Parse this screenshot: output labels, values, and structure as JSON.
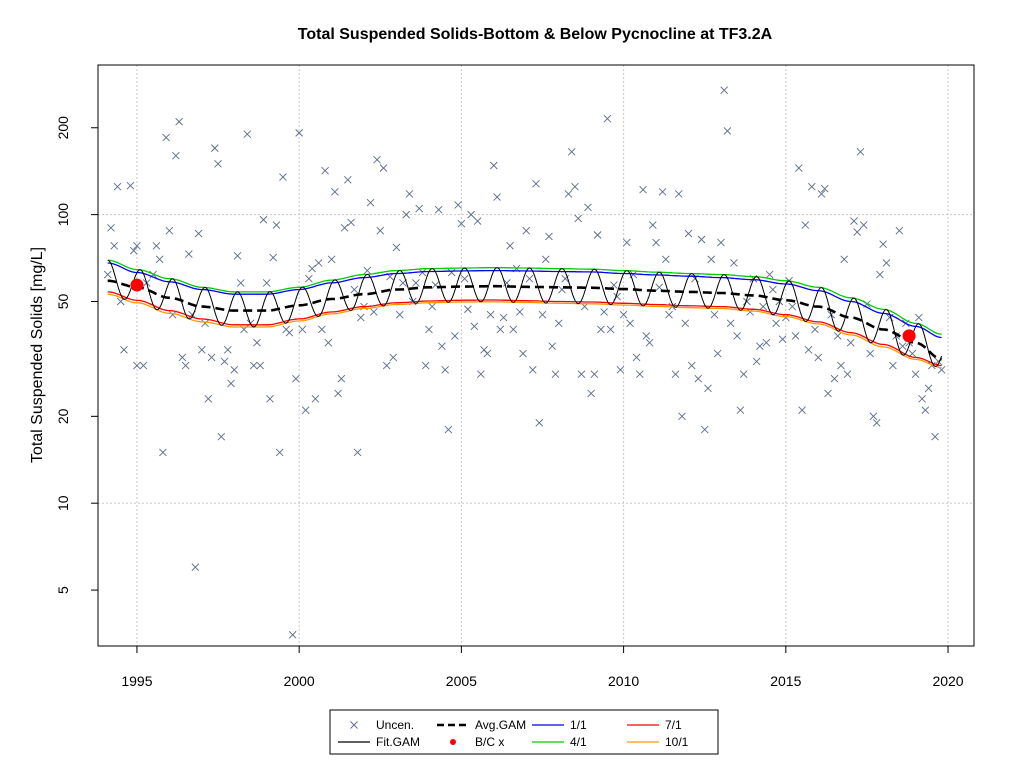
{
  "chart_data": {
    "type": "scatter",
    "title": "Total Suspended Solids-Bottom & Below Pycnocline at TF3.2A",
    "xlabel": "",
    "ylabel": "Total Suspended Solids [mg/L]",
    "xlim": [
      1993.8,
      2020.8
    ],
    "ylim": [
      3.2,
      330
    ],
    "yscale": "log",
    "grid": true,
    "xticks": [
      1995,
      2000,
      2005,
      2010,
      2015,
      2020
    ],
    "yticks": [
      5,
      10,
      20,
      50,
      100,
      200
    ],
    "legend_position": "bottom-center",
    "legend": [
      {
        "label": "Uncen.",
        "kind": "x-marker",
        "color": "#5a6a8a"
      },
      {
        "label": "Fit.GAM",
        "kind": "line",
        "color": "#000000"
      },
      {
        "label": "Avg.GAM",
        "kind": "dashed-line",
        "color": "#000000"
      },
      {
        "label": "B/C x",
        "kind": "dot",
        "color": "#ff0000"
      },
      {
        "label": "1/1",
        "kind": "line",
        "color": "#0000ff"
      },
      {
        "label": "4/1",
        "kind": "line",
        "color": "#00cc00"
      },
      {
        "label": "7/1",
        "kind": "line",
        "color": "#ff0000"
      },
      {
        "label": "10/1",
        "kind": "line",
        "color": "#ff9900"
      }
    ],
    "curve_knots": {
      "x": [
        1994.1,
        1995,
        1996,
        1997,
        1998,
        1999,
        2000,
        2001,
        2002,
        2003,
        2004,
        2005,
        2006,
        2007,
        2008,
        2009,
        2010,
        2011,
        2012,
        2013,
        2014,
        2015,
        2016,
        2017,
        2018,
        2019,
        2019.8
      ],
      "avg_gam": [
        59,
        56,
        51.5,
        48,
        46.5,
        46.5,
        48.5,
        51,
        53,
        55,
        56,
        56.3,
        56.5,
        56.2,
        56,
        55.8,
        55.2,
        54.5,
        54,
        53.5,
        52.5,
        50.5,
        48,
        44,
        40,
        36,
        31.5
      ],
      "gam_1_1": [
        68,
        63,
        58.5,
        55,
        53,
        53,
        55,
        58,
        60.5,
        62.5,
        63.5,
        63.8,
        64,
        63.8,
        63.5,
        63.3,
        62.5,
        61.8,
        61.2,
        60.5,
        59.5,
        57.5,
        54.5,
        50,
        45.5,
        41,
        37.5
      ],
      "gam_4_1": [
        69.5,
        64.5,
        60,
        56,
        54,
        54,
        56,
        59.3,
        62,
        64,
        65,
        65.3,
        65.5,
        65.3,
        65,
        64.7,
        64,
        63.2,
        62.5,
        62,
        61,
        59,
        56,
        51.5,
        47,
        42,
        38.5
      ],
      "gam_7_1": [
        54,
        50.5,
        46.5,
        43.5,
        41.5,
        41.5,
        43.5,
        46,
        48,
        49.5,
        50.2,
        50.5,
        50.6,
        50.3,
        50,
        49.8,
        49.3,
        48.8,
        48.3,
        48,
        47,
        45,
        42.5,
        39,
        35.5,
        32,
        30
      ],
      "gam_7_1_orange": [
        53,
        49.5,
        45.5,
        42.5,
        40.8,
        40.8,
        42.8,
        45.3,
        47.3,
        48.8,
        49.5,
        49.8,
        49.9,
        49.6,
        49.3,
        49.1,
        48.6,
        48.1,
        47.6,
        47.3,
        46.3,
        44.3,
        41.8,
        38.3,
        34.8,
        31.5,
        29.5
      ]
    },
    "bc_points": [
      {
        "x": 1995.0,
        "y": 57
      },
      {
        "x": 2018.8,
        "y": 38
      }
    ],
    "uncensored": [
      [
        1994.1,
        62
      ],
      [
        1994.2,
        90
      ],
      [
        1994.3,
        78
      ],
      [
        1994.4,
        125
      ],
      [
        1994.5,
        50
      ],
      [
        1994.6,
        34
      ],
      [
        1994.8,
        126
      ],
      [
        1994.9,
        75
      ],
      [
        1995.0,
        30
      ],
      [
        1995.0,
        78
      ],
      [
        1995.2,
        30
      ],
      [
        1995.3,
        58
      ],
      [
        1995.5,
        62
      ],
      [
        1995.6,
        78
      ],
      [
        1995.7,
        70
      ],
      [
        1995.8,
        15
      ],
      [
        1995.9,
        185
      ],
      [
        1996.0,
        88
      ],
      [
        1996.1,
        45
      ],
      [
        1996.2,
        160
      ],
      [
        1996.3,
        210
      ],
      [
        1996.4,
        32
      ],
      [
        1996.5,
        30
      ],
      [
        1996.6,
        73
      ],
      [
        1996.7,
        45
      ],
      [
        1996.8,
        6
      ],
      [
        1996.9,
        86
      ],
      [
        1997.0,
        34
      ],
      [
        1997.1,
        42
      ],
      [
        1997.2,
        23
      ],
      [
        1997.3,
        32
      ],
      [
        1997.4,
        170
      ],
      [
        1997.5,
        150
      ],
      [
        1997.6,
        17
      ],
      [
        1997.7,
        31
      ],
      [
        1997.8,
        34
      ],
      [
        1997.9,
        26
      ],
      [
        1998.0,
        29
      ],
      [
        1998.1,
        72
      ],
      [
        1998.2,
        58
      ],
      [
        1998.3,
        40
      ],
      [
        1998.4,
        190
      ],
      [
        1998.5,
        42
      ],
      [
        1998.6,
        30
      ],
      [
        1998.7,
        36
      ],
      [
        1998.8,
        30
      ],
      [
        1998.9,
        96
      ],
      [
        1999.0,
        58
      ],
      [
        1999.1,
        23
      ],
      [
        1999.2,
        71
      ],
      [
        1999.3,
        92
      ],
      [
        1999.4,
        15
      ],
      [
        1999.5,
        135
      ],
      [
        1999.6,
        40
      ],
      [
        1999.7,
        39
      ],
      [
        1999.8,
        3.5
      ],
      [
        1999.9,
        27
      ],
      [
        2000.0,
        192
      ],
      [
        2000.1,
        40
      ],
      [
        2000.2,
        21
      ],
      [
        2000.3,
        60
      ],
      [
        2000.4,
        65
      ],
      [
        2000.5,
        23
      ],
      [
        2000.6,
        68
      ],
      [
        2000.7,
        40
      ],
      [
        2000.8,
        142
      ],
      [
        2000.9,
        36
      ],
      [
        2001.0,
        70
      ],
      [
        2001.1,
        120
      ],
      [
        2001.2,
        24
      ],
      [
        2001.3,
        27
      ],
      [
        2001.4,
        90
      ],
      [
        2001.5,
        132
      ],
      [
        2001.6,
        94
      ],
      [
        2001.7,
        55
      ],
      [
        2001.8,
        15
      ],
      [
        2001.9,
        44
      ],
      [
        2002.0,
        48
      ],
      [
        2002.1,
        64
      ],
      [
        2002.2,
        110
      ],
      [
        2002.3,
        46
      ],
      [
        2002.4,
        155
      ],
      [
        2002.5,
        88
      ],
      [
        2002.6,
        145
      ],
      [
        2002.7,
        30
      ],
      [
        2002.8,
        61
      ],
      [
        2002.9,
        32
      ],
      [
        2003.0,
        77
      ],
      [
        2003.1,
        45
      ],
      [
        2003.2,
        58
      ],
      [
        2003.3,
        100
      ],
      [
        2003.4,
        118
      ],
      [
        2003.5,
        50
      ],
      [
        2003.6,
        58
      ],
      [
        2003.7,
        105
      ],
      [
        2003.8,
        63
      ],
      [
        2003.9,
        30
      ],
      [
        2004.0,
        40
      ],
      [
        2004.1,
        48
      ],
      [
        2004.2,
        57
      ],
      [
        2004.3,
        104
      ],
      [
        2004.4,
        35
      ],
      [
        2004.5,
        29
      ],
      [
        2004.6,
        18
      ],
      [
        2004.7,
        63
      ],
      [
        2004.8,
        38
      ],
      [
        2004.9,
        108
      ],
      [
        2005.0,
        93
      ],
      [
        2005.1,
        60
      ],
      [
        2005.2,
        47
      ],
      [
        2005.3,
        100
      ],
      [
        2005.4,
        41
      ],
      [
        2005.5,
        95
      ],
      [
        2005.6,
        28
      ],
      [
        2005.7,
        34
      ],
      [
        2005.8,
        33
      ],
      [
        2005.9,
        45
      ],
      [
        2006.0,
        148
      ],
      [
        2006.1,
        115
      ],
      [
        2006.2,
        40
      ],
      [
        2006.3,
        44
      ],
      [
        2006.4,
        58
      ],
      [
        2006.5,
        78
      ],
      [
        2006.6,
        40
      ],
      [
        2006.7,
        65
      ],
      [
        2006.8,
        46
      ],
      [
        2006.9,
        33
      ],
      [
        2007.0,
        88
      ],
      [
        2007.1,
        60
      ],
      [
        2007.2,
        29
      ],
      [
        2007.3,
        128
      ],
      [
        2007.4,
        19
      ],
      [
        2007.5,
        45
      ],
      [
        2007.6,
        70
      ],
      [
        2007.7,
        84
      ],
      [
        2007.8,
        35
      ],
      [
        2007.9,
        28
      ],
      [
        2008.0,
        42
      ],
      [
        2008.1,
        55
      ],
      [
        2008.2,
        60
      ],
      [
        2008.3,
        118
      ],
      [
        2008.4,
        165
      ],
      [
        2008.5,
        125
      ],
      [
        2008.6,
        97
      ],
      [
        2008.7,
        28
      ],
      [
        2008.8,
        48
      ],
      [
        2008.9,
        106
      ],
      [
        2009.0,
        24
      ],
      [
        2009.1,
        28
      ],
      [
        2009.2,
        85
      ],
      [
        2009.3,
        40
      ],
      [
        2009.4,
        46
      ],
      [
        2009.5,
        215
      ],
      [
        2009.6,
        40
      ],
      [
        2009.7,
        57
      ],
      [
        2009.8,
        52
      ],
      [
        2009.9,
        29
      ],
      [
        2010.0,
        45
      ],
      [
        2010.1,
        80
      ],
      [
        2010.2,
        42
      ],
      [
        2010.3,
        62
      ],
      [
        2010.4,
        32
      ],
      [
        2010.5,
        28
      ],
      [
        2010.6,
        122
      ],
      [
        2010.7,
        38
      ],
      [
        2010.8,
        36
      ],
      [
        2010.9,
        92
      ],
      [
        2011.0,
        80
      ],
      [
        2011.1,
        56
      ],
      [
        2011.2,
        120
      ],
      [
        2011.3,
        70
      ],
      [
        2011.4,
        45
      ],
      [
        2011.5,
        48
      ],
      [
        2011.6,
        28
      ],
      [
        2011.7,
        118
      ],
      [
        2011.8,
        20
      ],
      [
        2011.9,
        42
      ],
      [
        2012.0,
        86
      ],
      [
        2012.1,
        30
      ],
      [
        2012.2,
        60
      ],
      [
        2012.3,
        27
      ],
      [
        2012.4,
        82
      ],
      [
        2012.5,
        18
      ],
      [
        2012.6,
        25
      ],
      [
        2012.7,
        70
      ],
      [
        2012.8,
        45
      ],
      [
        2012.9,
        33
      ],
      [
        2013.0,
        80
      ],
      [
        2013.1,
        270
      ],
      [
        2013.2,
        195
      ],
      [
        2013.3,
        42
      ],
      [
        2013.4,
        68
      ],
      [
        2013.5,
        38
      ],
      [
        2013.6,
        21
      ],
      [
        2013.7,
        28
      ],
      [
        2013.8,
        50
      ],
      [
        2013.9,
        46
      ],
      [
        2014.0,
        60
      ],
      [
        2014.1,
        31
      ],
      [
        2014.2,
        35
      ],
      [
        2014.3,
        48
      ],
      [
        2014.4,
        36
      ],
      [
        2014.5,
        62
      ],
      [
        2014.6,
        55
      ],
      [
        2014.7,
        42
      ],
      [
        2014.8,
        50
      ],
      [
        2014.9,
        37
      ],
      [
        2015.0,
        44
      ],
      [
        2015.1,
        59
      ],
      [
        2015.2,
        48
      ],
      [
        2015.3,
        38
      ],
      [
        2015.4,
        145
      ],
      [
        2015.5,
        21
      ],
      [
        2015.6,
        92
      ],
      [
        2015.7,
        34
      ],
      [
        2015.8,
        125
      ],
      [
        2015.9,
        40
      ],
      [
        2016.0,
        32
      ],
      [
        2016.1,
        118
      ],
      [
        2016.2,
        123
      ],
      [
        2016.3,
        24
      ],
      [
        2016.4,
        45
      ],
      [
        2016.5,
        27
      ],
      [
        2016.6,
        38
      ],
      [
        2016.7,
        30
      ],
      [
        2016.8,
        70
      ],
      [
        2016.9,
        28
      ],
      [
        2017.0,
        36
      ],
      [
        2017.1,
        95
      ],
      [
        2017.2,
        87
      ],
      [
        2017.3,
        165
      ],
      [
        2017.4,
        92
      ],
      [
        2017.5,
        49
      ],
      [
        2017.6,
        33
      ],
      [
        2017.7,
        20
      ],
      [
        2017.8,
        19
      ],
      [
        2017.9,
        62
      ],
      [
        2018.0,
        79
      ],
      [
        2018.1,
        68
      ],
      [
        2018.2,
        44
      ],
      [
        2018.3,
        30
      ],
      [
        2018.4,
        38
      ],
      [
        2018.5,
        88
      ],
      [
        2018.6,
        35
      ],
      [
        2018.7,
        42
      ],
      [
        2018.8,
        36
      ],
      [
        2018.9,
        33
      ],
      [
        2019.0,
        28
      ],
      [
        2019.1,
        44
      ],
      [
        2019.2,
        23
      ],
      [
        2019.3,
        21
      ],
      [
        2019.4,
        25
      ],
      [
        2019.5,
        30
      ],
      [
        2019.6,
        17
      ],
      [
        2019.7,
        31
      ],
      [
        2019.8,
        29
      ]
    ]
  }
}
